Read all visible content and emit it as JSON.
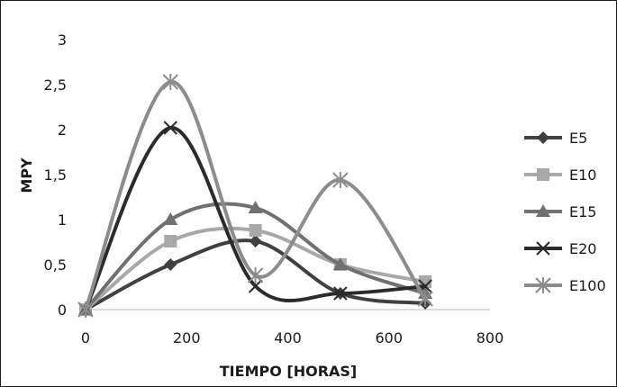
{
  "chart_data": {
    "type": "line",
    "title": "",
    "xlabel": "TIEMPO [HORAS]",
    "ylabel": "MPY",
    "xlim": [
      0,
      800
    ],
    "ylim": [
      0,
      3
    ],
    "x_ticks": [
      "0",
      "200",
      "400",
      "600",
      "800"
    ],
    "y_ticks": [
      "0",
      "0,5",
      "1",
      "1,5",
      "2",
      "2,5",
      "3"
    ],
    "grid": false,
    "smooth": true,
    "legend_position": "right",
    "x": [
      0,
      168,
      336,
      504,
      672
    ],
    "series": [
      {
        "name": "E5",
        "values": [
          0,
          0.5,
          0.76,
          0.18,
          0.07
        ],
        "color": "#404040",
        "marker": "diamond"
      },
      {
        "name": "E10",
        "values": [
          0,
          0.76,
          0.88,
          0.5,
          0.31
        ],
        "color": "#a8a8a8",
        "marker": "square"
      },
      {
        "name": "E15",
        "values": [
          0,
          1.0,
          1.13,
          0.5,
          0.18
        ],
        "color": "#707070",
        "marker": "triangle"
      },
      {
        "name": "E20",
        "values": [
          0,
          2.02,
          0.26,
          0.18,
          0.26
        ],
        "color": "#2b2b2b",
        "marker": "x"
      },
      {
        "name": "E100",
        "values": [
          0,
          2.53,
          0.38,
          1.44,
          0.12
        ],
        "color": "#8c8c8c",
        "marker": "star"
      }
    ]
  }
}
